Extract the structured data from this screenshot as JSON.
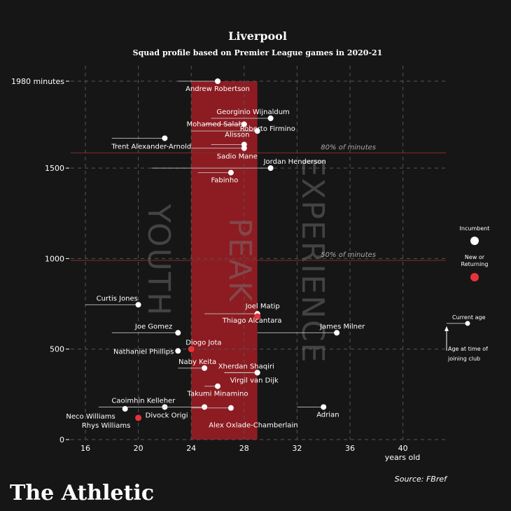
{
  "chart_data": {
    "type": "scatter",
    "title": "Liverpool",
    "subtitle": "Squad profile based on Premier League games in 2020-21",
    "xlabel": "years old",
    "ylabel": "",
    "xlim": [
      14,
      44
    ],
    "ylim": [
      0,
      1980
    ],
    "x_ticks": [
      16,
      20,
      24,
      28,
      32,
      36,
      40
    ],
    "y_ticks": [
      {
        "value": 0,
        "label": "0"
      },
      {
        "value": 500,
        "label": "500"
      },
      {
        "value": 1000,
        "label": "1000"
      },
      {
        "value": 1500,
        "label": "1500"
      },
      {
        "value": 1980,
        "label": "1980 minutes"
      }
    ],
    "zones": [
      {
        "label": "YOUTH",
        "from": 14,
        "to": 24
      },
      {
        "label": "PEAK",
        "from": 24,
        "to": 29
      },
      {
        "label": "EXPERIENCE",
        "from": 29,
        "to": 44
      }
    ],
    "reference_lines": [
      {
        "value": 1584,
        "label": "80% of minutes"
      },
      {
        "value": 990,
        "label": "50% of minutes"
      }
    ],
    "grid": true,
    "players": [
      {
        "name": "Andrew Robertson",
        "age": 26,
        "join_age": 23,
        "minutes": 1980,
        "new": false
      },
      {
        "name": "Georginio Wijnaldum",
        "age": 30,
        "join_age": 25.5,
        "minutes": 1775,
        "new": false
      },
      {
        "name": "Mohamed Salah",
        "age": 28,
        "join_age": 25,
        "minutes": 1742,
        "new": false
      },
      {
        "name": "Roberto Firmino",
        "age": 29,
        "join_age": 24,
        "minutes": 1705,
        "new": false
      },
      {
        "name": "Trent Alexander-Arnold",
        "age": 22,
        "join_age": 18,
        "minutes": 1665,
        "new": false
      },
      {
        "name": "Alisson",
        "age": 28,
        "join_age": 25.5,
        "minutes": 1630,
        "new": false
      },
      {
        "name": "Sadio Mane",
        "age": 28,
        "join_age": 24,
        "minutes": 1610,
        "new": false
      },
      {
        "name": "Jordan Henderson",
        "age": 30,
        "join_age": 21,
        "minutes": 1500,
        "new": false
      },
      {
        "name": "Fabinho",
        "age": 27,
        "join_age": 24.5,
        "minutes": 1475,
        "new": false
      },
      {
        "name": "Curtis Jones",
        "age": 20,
        "join_age": 16,
        "minutes": 745,
        "new": false
      },
      {
        "name": "Joel Matip",
        "age": 29,
        "join_age": 25,
        "minutes": 695,
        "new": false
      },
      {
        "name": "Thiago Alcantara",
        "age": 29,
        "join_age": 29,
        "minutes": 680,
        "new": true
      },
      {
        "name": "James Milner",
        "age": 35,
        "join_age": 29,
        "minutes": 590,
        "new": false
      },
      {
        "name": "Joe Gomez",
        "age": 23,
        "join_age": 18,
        "minutes": 590,
        "new": false
      },
      {
        "name": "Diogo Jota",
        "age": 24,
        "join_age": 24,
        "minutes": 500,
        "new": true
      },
      {
        "name": "Nathaniel Phillips",
        "age": 23,
        "join_age": 23,
        "minutes": 490,
        "new": false
      },
      {
        "name": "Naby Keita",
        "age": 25,
        "join_age": 23,
        "minutes": 395,
        "new": false
      },
      {
        "name": "Xherdan Shaqiri",
        "age": 29,
        "join_age": 26.5,
        "minutes": 370,
        "new": false
      },
      {
        "name": "Virgil van Dijk",
        "age": 29,
        "join_age": 26.5,
        "minutes": 370,
        "new": false
      },
      {
        "name": "Takumi Minamino",
        "age": 26,
        "join_age": 25,
        "minutes": 295,
        "new": false
      },
      {
        "name": "Caoimhin Kelleher",
        "age": 22,
        "join_age": 17,
        "minutes": 180,
        "new": false
      },
      {
        "name": "Divock Origi",
        "age": 25,
        "join_age": 19,
        "minutes": 180,
        "new": false
      },
      {
        "name": "Alex Oxlade-Chamberlain",
        "age": 27,
        "join_age": 24,
        "minutes": 175,
        "new": false
      },
      {
        "name": "Adrian",
        "age": 34,
        "join_age": 32,
        "minutes": 180,
        "new": false
      },
      {
        "name": "Neco Williams",
        "age": 19,
        "join_age": 19,
        "minutes": 170,
        "new": false
      },
      {
        "name": "Rhys Williams",
        "age": 20,
        "join_age": 20,
        "minutes": 120,
        "new": true
      }
    ],
    "legend": {
      "incumbent": "Incumbent",
      "new_line1": "New or",
      "new_line2": "Returning",
      "current_age": "Current age",
      "joined_line1": "Age at time of",
      "joined_line2": "joining club"
    }
  },
  "branding": {
    "logo": "The Athletic",
    "source": "Source: FBref"
  },
  "colors": {
    "background": "#161616",
    "peak_band": "#8c1c22",
    "new_dot": "#e8323a",
    "reference_line": "#8c2a2a"
  }
}
